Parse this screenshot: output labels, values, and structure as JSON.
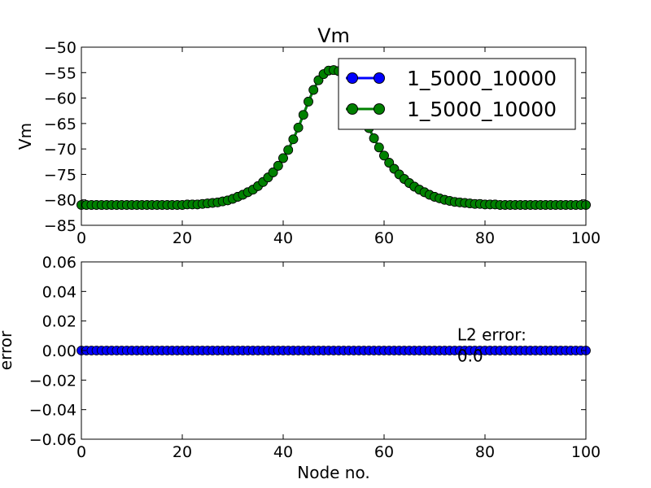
{
  "chart_data": [
    {
      "type": "line",
      "title": "Vm",
      "xlabel": "",
      "ylabel": "Vm",
      "xlim": [
        0,
        100
      ],
      "ylim": [
        -85,
        -50
      ],
      "xticks": [
        0,
        20,
        40,
        60,
        80,
        100
      ],
      "yticks": [
        -85,
        -80,
        -75,
        -70,
        -65,
        -60,
        -55,
        -50
      ],
      "xtick_labels": [
        "0",
        "20",
        "40",
        "60",
        "80",
        "100"
      ],
      "ytick_labels": [
        "−85",
        "−80",
        "−75",
        "−70",
        "−65",
        "−60",
        "−55",
        "−50"
      ],
      "grid": false,
      "legend_position": "top-right",
      "x": [
        0,
        1,
        2,
        3,
        4,
        5,
        6,
        7,
        8,
        9,
        10,
        11,
        12,
        13,
        14,
        15,
        16,
        17,
        18,
        19,
        20,
        21,
        22,
        23,
        24,
        25,
        26,
        27,
        28,
        29,
        30,
        31,
        32,
        33,
        34,
        35,
        36,
        37,
        38,
        39,
        40,
        41,
        42,
        43,
        44,
        45,
        46,
        47,
        48,
        49,
        50,
        51,
        52,
        53,
        54,
        55,
        56,
        57,
        58,
        59,
        60,
        61,
        62,
        63,
        64,
        65,
        66,
        67,
        68,
        69,
        70,
        71,
        72,
        73,
        74,
        75,
        76,
        77,
        78,
        79,
        80,
        81,
        82,
        83,
        84,
        85,
        86,
        87,
        88,
        89,
        90,
        91,
        92,
        93,
        94,
        95,
        96,
        97,
        98,
        99,
        100
      ],
      "series": [
        {
          "name": "1_5000_10000",
          "color": "#0000ff",
          "values": [
            -81,
            -81,
            -81,
            -81,
            -81,
            -81,
            -81,
            -81,
            -81,
            -81,
            -81,
            -81,
            -81,
            -81,
            -81,
            -81,
            -81,
            -81,
            -81,
            -81,
            -81,
            -80.9,
            -80.9,
            -80.9,
            -80.8,
            -80.7,
            -80.6,
            -80.5,
            -80.3,
            -80.1,
            -79.8,
            -79.4,
            -79,
            -78.5,
            -78,
            -77.3,
            -76.5,
            -75.6,
            -74.6,
            -73.3,
            -71.8,
            -70.2,
            -68.1,
            -65.8,
            -63.3,
            -60.7,
            -58.4,
            -56.5,
            -55.3,
            -54.6,
            -54.5,
            -54.7,
            -55.5,
            -56.9,
            -58.8,
            -61.2,
            -63.5,
            -65.9,
            -67.9,
            -69.7,
            -71.3,
            -72.7,
            -73.9,
            -75,
            -75.9,
            -76.7,
            -77.4,
            -78,
            -78.5,
            -79,
            -79.4,
            -79.7,
            -80,
            -80.2,
            -80.4,
            -80.5,
            -80.6,
            -80.7,
            -80.8,
            -80.8,
            -80.9,
            -80.9,
            -80.9,
            -81,
            -81,
            -81,
            -81,
            -81,
            -81,
            -81,
            -81,
            -81,
            -81,
            -81,
            -81,
            -81,
            -81,
            -81,
            -81,
            -81,
            -81
          ]
        },
        {
          "name": "1_5000_10000",
          "color": "#008000",
          "values": [
            -81,
            -81,
            -81,
            -81,
            -81,
            -81,
            -81,
            -81,
            -81,
            -81,
            -81,
            -81,
            -81,
            -81,
            -81,
            -81,
            -81,
            -81,
            -81,
            -81,
            -81,
            -80.9,
            -80.9,
            -80.9,
            -80.8,
            -80.7,
            -80.6,
            -80.5,
            -80.3,
            -80.1,
            -79.8,
            -79.4,
            -79,
            -78.5,
            -78,
            -77.3,
            -76.5,
            -75.6,
            -74.6,
            -73.3,
            -71.8,
            -70.2,
            -68.1,
            -65.8,
            -63.3,
            -60.7,
            -58.4,
            -56.5,
            -55.3,
            -54.6,
            -54.5,
            -54.7,
            -55.5,
            -56.9,
            -58.8,
            -61.2,
            -63.5,
            -65.9,
            -67.9,
            -69.7,
            -71.3,
            -72.7,
            -73.9,
            -75,
            -75.9,
            -76.7,
            -77.4,
            -78,
            -78.5,
            -79,
            -79.4,
            -79.7,
            -80,
            -80.2,
            -80.4,
            -80.5,
            -80.6,
            -80.7,
            -80.8,
            -80.8,
            -80.9,
            -80.9,
            -80.9,
            -81,
            -81,
            -81,
            -81,
            -81,
            -81,
            -81,
            -81,
            -81,
            -81,
            -81,
            -81,
            -81,
            -81,
            -81,
            -81,
            -81,
            -81
          ]
        }
      ]
    },
    {
      "type": "line",
      "title": "",
      "xlabel": "Node no.",
      "ylabel": "error",
      "xlim": [
        0,
        100
      ],
      "ylim": [
        -0.06,
        0.06
      ],
      "xticks": [
        0,
        20,
        40,
        60,
        80,
        100
      ],
      "yticks": [
        -0.06,
        -0.04,
        -0.02,
        0.0,
        0.02,
        0.04,
        0.06
      ],
      "xtick_labels": [
        "0",
        "20",
        "40",
        "60",
        "80",
        "100"
      ],
      "ytick_labels": [
        "−0.06",
        "−0.04",
        "−0.02",
        "0.00",
        "0.02",
        "0.04",
        "0.06"
      ],
      "grid": false,
      "annotation": {
        "label": "L2 error:",
        "value": "0.0",
        "x": 74.5,
        "y": 0.007
      },
      "x": [
        0,
        1,
        2,
        3,
        4,
        5,
        6,
        7,
        8,
        9,
        10,
        11,
        12,
        13,
        14,
        15,
        16,
        17,
        18,
        19,
        20,
        21,
        22,
        23,
        24,
        25,
        26,
        27,
        28,
        29,
        30,
        31,
        32,
        33,
        34,
        35,
        36,
        37,
        38,
        39,
        40,
        41,
        42,
        43,
        44,
        45,
        46,
        47,
        48,
        49,
        50,
        51,
        52,
        53,
        54,
        55,
        56,
        57,
        58,
        59,
        60,
        61,
        62,
        63,
        64,
        65,
        66,
        67,
        68,
        69,
        70,
        71,
        72,
        73,
        74,
        75,
        76,
        77,
        78,
        79,
        80,
        81,
        82,
        83,
        84,
        85,
        86,
        87,
        88,
        89,
        90,
        91,
        92,
        93,
        94,
        95,
        96,
        97,
        98,
        99,
        100
      ],
      "series": [
        {
          "color": "#0000ff",
          "values": [
            0,
            0,
            0,
            0,
            0,
            0,
            0,
            0,
            0,
            0,
            0,
            0,
            0,
            0,
            0,
            0,
            0,
            0,
            0,
            0,
            0,
            0,
            0,
            0,
            0,
            0,
            0,
            0,
            0,
            0,
            0,
            0,
            0,
            0,
            0,
            0,
            0,
            0,
            0,
            0,
            0,
            0,
            0,
            0,
            0,
            0,
            0,
            0,
            0,
            0,
            0,
            0,
            0,
            0,
            0,
            0,
            0,
            0,
            0,
            0,
            0,
            0,
            0,
            0,
            0,
            0,
            0,
            0,
            0,
            0,
            0,
            0,
            0,
            0,
            0,
            0,
            0,
            0,
            0,
            0,
            0,
            0,
            0,
            0,
            0,
            0,
            0,
            0,
            0,
            0,
            0,
            0,
            0,
            0,
            0,
            0,
            0,
            0,
            0,
            0,
            0
          ]
        }
      ]
    }
  ]
}
